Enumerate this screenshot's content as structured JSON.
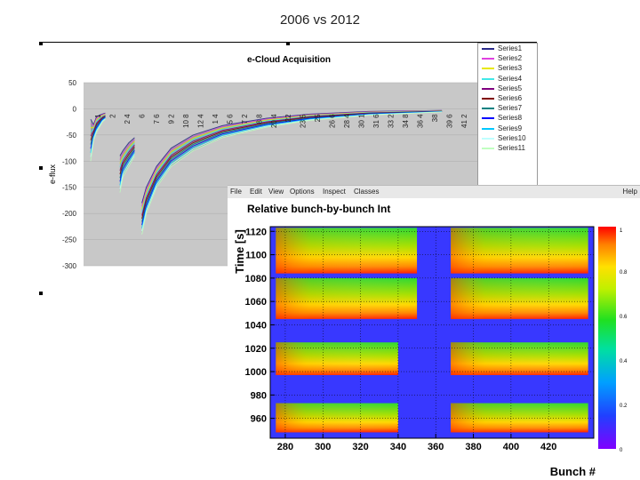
{
  "slide": {
    "title": "2006 vs 2012"
  },
  "chart_data": [
    {
      "type": "line",
      "title": "e-Cloud Acquisition",
      "ylabel": "e-flux",
      "xlabel": "",
      "ylim": [
        -300,
        50
      ],
      "yticks": [
        50,
        0,
        -50,
        -100,
        -150,
        -200,
        -250,
        -300
      ],
      "x_tick_labels": [
        "1",
        "2",
        "2 4",
        "6",
        "7 6",
        "9 2",
        "10 8",
        "12 4",
        "1 4",
        "5 6",
        "7 2",
        "8 8",
        "20 4",
        "22",
        "23 5",
        "25",
        "26 6",
        "28 4",
        "30 1",
        "31 6",
        "33 2",
        "34 8",
        "36 4",
        "38",
        "39 6",
        "41 2"
      ],
      "grid": true,
      "legend_placement": "right",
      "series": [
        {
          "name": "Series1",
          "color": "#2a2a8a"
        },
        {
          "name": "Series2",
          "color": "#e040e0"
        },
        {
          "name": "Series3",
          "color": "#e8e800"
        },
        {
          "name": "Series4",
          "color": "#40e8e8"
        },
        {
          "name": "Series5",
          "color": "#800080"
        },
        {
          "name": "Series6",
          "color": "#800000"
        },
        {
          "name": "Series7",
          "color": "#008080"
        },
        {
          "name": "Series8",
          "color": "#0000ff"
        },
        {
          "name": "Series9",
          "color": "#00c8ff"
        },
        {
          "name": "Series10",
          "color": "#c0ffff"
        },
        {
          "name": "Series11",
          "color": "#c0ffc0"
        }
      ],
      "envelope": {
        "train1": {
          "x": [
            0,
            0.2,
            0.4,
            0.6,
            0.8,
            1.0
          ],
          "upper": [
            -20,
            -30,
            -15,
            -12,
            -10,
            -8
          ],
          "lower": [
            -100,
            -60,
            -45,
            -35,
            -25,
            -20
          ]
        },
        "train2": {
          "x": [
            2.0,
            2.2,
            2.6,
            3.0
          ],
          "upper": [
            -90,
            -80,
            -65,
            -55
          ],
          "lower": [
            -160,
            -130,
            -110,
            -90
          ]
        },
        "train3": {
          "x": [
            3.5,
            3.8,
            4.5,
            5.5,
            7.0,
            9.0,
            12.0,
            15.0,
            19.0,
            24.0
          ],
          "upper": [
            -180,
            -150,
            -110,
            -75,
            -50,
            -32,
            -18,
            -10,
            -5,
            -3
          ],
          "lower": [
            -240,
            -200,
            -150,
            -110,
            -80,
            -55,
            -35,
            -22,
            -12,
            -6
          ]
        }
      }
    },
    {
      "type": "heatmap",
      "title": "Relative bunch-by-bunch Int",
      "xlabel": "Bunch #",
      "ylabel": "Time [s]",
      "xlim": [
        272,
        444
      ],
      "ylim": [
        943,
        1124
      ],
      "xticks": [
        280,
        300,
        320,
        340,
        360,
        380,
        400,
        420
      ],
      "yticks": [
        960,
        980,
        1000,
        1020,
        1040,
        1060,
        1080,
        1100,
        1120
      ],
      "colorbar": {
        "range": [
          0,
          1
        ],
        "ticks": [
          "0",
          "0.2",
          "0.4",
          "0.6",
          "0.8",
          "1"
        ]
      },
      "background_value": 0.05,
      "blocks": [
        {
          "x": [
            275,
            350
          ],
          "y": [
            1084,
            1123
          ]
        },
        {
          "x": [
            368,
            441
          ],
          "y": [
            1084,
            1123
          ]
        },
        {
          "x": [
            275,
            350
          ],
          "y": [
            1045,
            1080
          ]
        },
        {
          "x": [
            368,
            441
          ],
          "y": [
            1045,
            1080
          ]
        },
        {
          "x": [
            275,
            340
          ],
          "y": [
            997,
            1025
          ]
        },
        {
          "x": [
            368,
            441
          ],
          "y": [
            997,
            1025
          ]
        },
        {
          "x": [
            275,
            340
          ],
          "y": [
            948,
            973
          ]
        },
        {
          "x": [
            368,
            441
          ],
          "y": [
            948,
            973
          ]
        }
      ],
      "menu": [
        "File",
        "Edit",
        "View",
        "Options",
        "Inspect",
        "Classes"
      ],
      "menu_right": "Help"
    }
  ]
}
